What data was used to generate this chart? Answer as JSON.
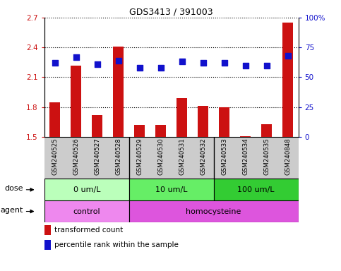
{
  "title": "GDS3413 / 391003",
  "samples": [
    "GSM240525",
    "GSM240526",
    "GSM240527",
    "GSM240528",
    "GSM240529",
    "GSM240530",
    "GSM240531",
    "GSM240532",
    "GSM240533",
    "GSM240534",
    "GSM240535",
    "GSM240848"
  ],
  "transformed_count": [
    1.85,
    2.22,
    1.72,
    2.41,
    1.62,
    1.62,
    1.89,
    1.81,
    1.8,
    1.51,
    1.63,
    2.65
  ],
  "percentile_rank": [
    62,
    67,
    61,
    64,
    58,
    58,
    63,
    62,
    62,
    60,
    60,
    68
  ],
  "bar_color": "#cc1111",
  "dot_color": "#1111cc",
  "ylim_left": [
    1.5,
    2.7
  ],
  "ylim_right": [
    0,
    100
  ],
  "yticks_left": [
    1.5,
    1.8,
    2.1,
    2.4,
    2.7
  ],
  "yticks_right": [
    0,
    25,
    50,
    75,
    100
  ],
  "ytick_labels_left": [
    "1.5",
    "1.8",
    "2.1",
    "2.4",
    "2.7"
  ],
  "ytick_labels_right": [
    "0",
    "25",
    "50",
    "75",
    "100%"
  ],
  "dose_groups": [
    {
      "label": "0 um/L",
      "start": 0,
      "end": 4,
      "color": "#bbffbb"
    },
    {
      "label": "10 um/L",
      "start": 4,
      "end": 8,
      "color": "#66ee66"
    },
    {
      "label": "100 um/L",
      "start": 8,
      "end": 12,
      "color": "#33cc33"
    }
  ],
  "agent_groups": [
    {
      "label": "control",
      "start": 0,
      "end": 4,
      "color": "#ee88ee"
    },
    {
      "label": "homocysteine",
      "start": 4,
      "end": 12,
      "color": "#dd55dd"
    }
  ],
  "dose_label": "dose",
  "agent_label": "agent",
  "legend_bar_label": "transformed count",
  "legend_dot_label": "percentile rank within the sample",
  "tick_label_area_color": "#cccccc",
  "bar_width": 0.5,
  "dot_size": 28,
  "title_fontsize": 9,
  "axis_fontsize": 7.5,
  "label_fontsize": 8,
  "sample_fontsize": 6.2
}
